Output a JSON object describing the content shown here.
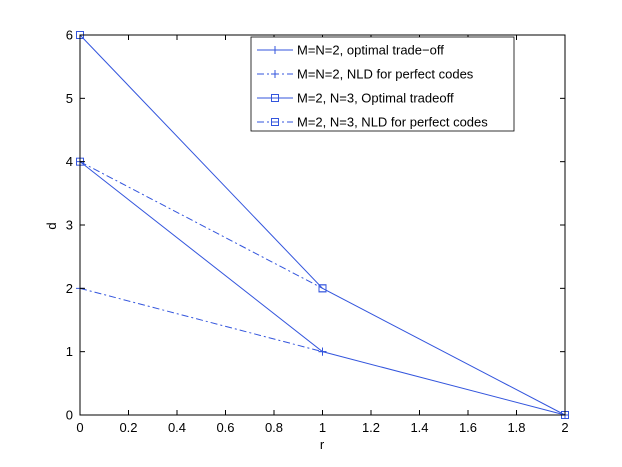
{
  "chart_data": {
    "type": "line",
    "xlabel": "r",
    "ylabel": "d",
    "xlim": [
      0,
      2
    ],
    "ylim": [
      0,
      6
    ],
    "xticks": [
      "0",
      "0.2",
      "0.4",
      "0.6",
      "0.8",
      "1",
      "1.2",
      "1.4",
      "1.6",
      "1.8",
      "2"
    ],
    "yticks": [
      "0",
      "1",
      "2",
      "3",
      "4",
      "5",
      "6"
    ],
    "grid": false,
    "legend_position": "top-right",
    "line_color": "#3355dd",
    "series": [
      {
        "name": "M=N=2, optimal trade−off",
        "style": "solid",
        "marker": "plus",
        "points": [
          [
            0,
            4
          ],
          [
            1,
            1
          ],
          [
            2,
            0
          ]
        ]
      },
      {
        "name": "M=N=2, NLD for perfect codes",
        "style": "dashdot",
        "marker": "plus",
        "points": [
          [
            0,
            2
          ],
          [
            1,
            1
          ]
        ]
      },
      {
        "name": "M=2, N=3, Optimal tradeoff",
        "style": "solid",
        "marker": "square",
        "points": [
          [
            0,
            6
          ],
          [
            1,
            2
          ],
          [
            2,
            0
          ]
        ]
      },
      {
        "name": "M=2, N=3, NLD for perfect codes",
        "style": "dashdot",
        "marker": "square",
        "points": [
          [
            0,
            4
          ],
          [
            1,
            2
          ]
        ]
      }
    ]
  }
}
